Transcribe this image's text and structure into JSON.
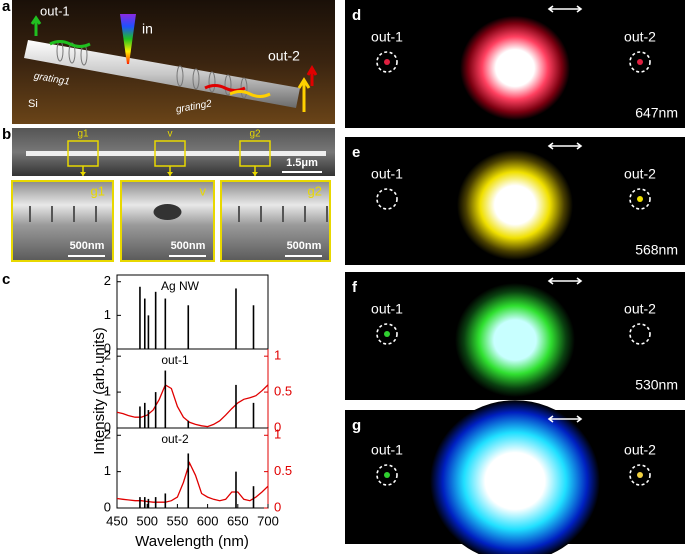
{
  "panel_a": {
    "label": "a",
    "out1": "out-1",
    "in": "in",
    "out2": "out-2",
    "grating1": "grating1",
    "grating2": "grating2",
    "substrate": "Si"
  },
  "panel_b": {
    "label": "b",
    "boxes": [
      "g1",
      "v",
      "g2"
    ],
    "scale": "1.5μm",
    "insets": [
      {
        "label": "g1",
        "scale": "500nm"
      },
      {
        "label": "v",
        "scale": "500nm"
      },
      {
        "label": "g2",
        "scale": "500nm"
      }
    ]
  },
  "panel_c": {
    "label": "c",
    "ylabel": "Intensity (arb.units)",
    "xlabel": "Wavelength (nm)"
  },
  "images": [
    {
      "label": "d",
      "out1": "out-1",
      "out2": "out-2",
      "wavelength": "647nm"
    },
    {
      "label": "e",
      "out1": "out-1",
      "out2": "out-2",
      "wavelength": "568nm"
    },
    {
      "label": "f",
      "out1": "out-1",
      "out2": "out-2",
      "wavelength": "530nm"
    },
    {
      "label": "g",
      "out1": "out-1",
      "out2": "out-2"
    }
  ],
  "chart_data": [
    {
      "type": "stem",
      "annotation": "Ag NW",
      "color": "#000",
      "x": [
        488,
        496,
        502,
        514,
        530,
        568,
        647,
        676
      ],
      "values": [
        1.85,
        1.5,
        1.0,
        1.7,
        1.5,
        1.3,
        1.8,
        1.3
      ],
      "xlim": [
        450,
        700
      ],
      "ylim": [
        0,
        2.2
      ],
      "yticks": [
        0,
        1,
        2
      ]
    },
    {
      "type": "stem",
      "annotation": "out-1",
      "color": "#000",
      "x": [
        488,
        496,
        502,
        514,
        530,
        568,
        647,
        676
      ],
      "values": [
        0.6,
        0.7,
        0.5,
        1.0,
        1.6,
        0.2,
        1.2,
        0.7
      ],
      "xlim": [
        450,
        700
      ],
      "ylim": [
        0,
        2.2
      ],
      "yticks": [
        0,
        1,
        2
      ],
      "curve": {
        "color": "#e00000",
        "axis": "y2",
        "x": [
          450,
          460,
          470,
          480,
          490,
          500,
          510,
          520,
          530,
          540,
          550,
          560,
          570,
          580,
          590,
          600,
          610,
          620,
          630,
          640,
          650,
          660,
          670,
          680,
          690,
          700
        ],
        "values": [
          0.22,
          0.2,
          0.17,
          0.15,
          0.15,
          0.18,
          0.25,
          0.4,
          0.6,
          0.55,
          0.3,
          0.15,
          0.08,
          0.05,
          0.03,
          0.02,
          0.05,
          0.1,
          0.18,
          0.27,
          0.35,
          0.4,
          0.42,
          0.45,
          0.52,
          0.6
        ]
      },
      "y2lim": [
        0,
        1.1
      ],
      "y2ticks": [
        0,
        0.5,
        1
      ]
    },
    {
      "type": "stem",
      "annotation": "out-2",
      "color": "#000",
      "x": [
        488,
        496,
        502,
        514,
        530,
        568,
        647,
        676
      ],
      "values": [
        0.3,
        0.3,
        0.25,
        0.3,
        0.4,
        1.5,
        1.0,
        0.6
      ],
      "xlim": [
        450,
        700
      ],
      "ylim": [
        0,
        2.2
      ],
      "yticks": [
        0,
        1,
        2
      ],
      "xticks": [
        450,
        500,
        550,
        600,
        650,
        700
      ],
      "curve": {
        "color": "#e00000",
        "axis": "y2",
        "x": [
          450,
          460,
          470,
          480,
          490,
          500,
          510,
          520,
          530,
          540,
          550,
          560,
          570,
          580,
          590,
          600,
          610,
          620,
          630,
          640,
          650,
          660,
          670,
          680,
          690,
          700
        ],
        "values": [
          0.13,
          0.12,
          0.11,
          0.1,
          0.1,
          0.09,
          0.08,
          0.08,
          0.08,
          0.1,
          0.15,
          0.35,
          0.62,
          0.45,
          0.2,
          0.15,
          0.12,
          0.1,
          0.12,
          0.22,
          0.22,
          0.12,
          0.1,
          0.15,
          0.22,
          0.3
        ]
      },
      "y2lim": [
        0,
        1.1
      ],
      "y2ticks": [
        0,
        0.5,
        1
      ]
    }
  ]
}
